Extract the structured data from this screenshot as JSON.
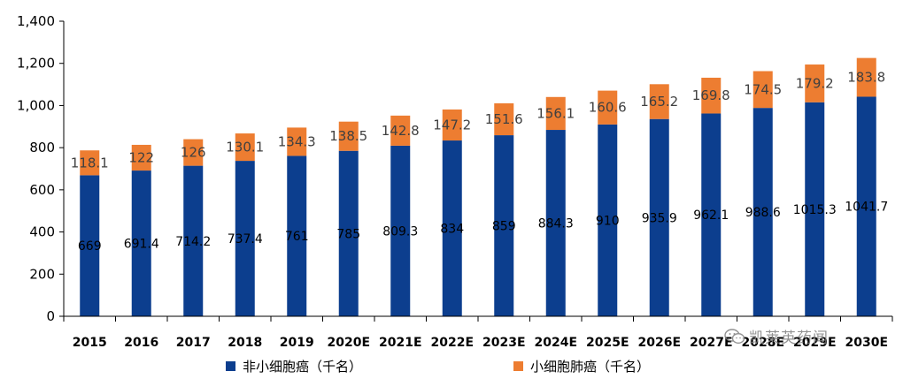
{
  "chart_data": {
    "type": "bar",
    "stacked": true,
    "categories": [
      "2015",
      "2016",
      "2017",
      "2018",
      "2019",
      "2020E",
      "2021E",
      "2022E",
      "2023E",
      "2024E",
      "2025E",
      "2026E",
      "2027E",
      "2028E",
      "2029E",
      "2030E"
    ],
    "series": [
      {
        "name": "非小细胞癌（千名）",
        "color": "#0c3e8e",
        "values": [
          669,
          691.4,
          714.2,
          737.4,
          761,
          785,
          809.3,
          834,
          859,
          884.3,
          910,
          935.9,
          962.1,
          988.6,
          1015.3,
          1041.7
        ],
        "labels": [
          "669",
          "691.4",
          "714.2",
          "737.4",
          "761",
          "785",
          "809.3",
          "834",
          "859",
          "884.3",
          "910",
          "935.9",
          "962.1",
          "988.6",
          "1015.3",
          "1041.7"
        ]
      },
      {
        "name": "小细胞肺癌（千名）",
        "color": "#ed7d31",
        "values": [
          118.1,
          122,
          126,
          130.1,
          134.3,
          138.5,
          142.8,
          147.2,
          151.6,
          156.1,
          160.6,
          165.2,
          169.8,
          174.5,
          179.2,
          183.8
        ],
        "labels": [
          "118.1",
          "122",
          "126",
          "130.1",
          "134.3",
          "138.5",
          "142.8",
          "147.2",
          "151.6",
          "156.1",
          "160.6",
          "165.2",
          "169.8",
          "174.5",
          "179.2",
          "183.8"
        ]
      }
    ],
    "ylim": [
      0,
      1400
    ],
    "yticks": [
      "0",
      "200",
      "400",
      "600",
      "800",
      "1,000",
      "1,200",
      "1,400"
    ],
    "grid": false,
    "legend_position": "bottom"
  },
  "watermark": {
    "text": "凯莱英药闻",
    "icon": "wechat-icon"
  }
}
